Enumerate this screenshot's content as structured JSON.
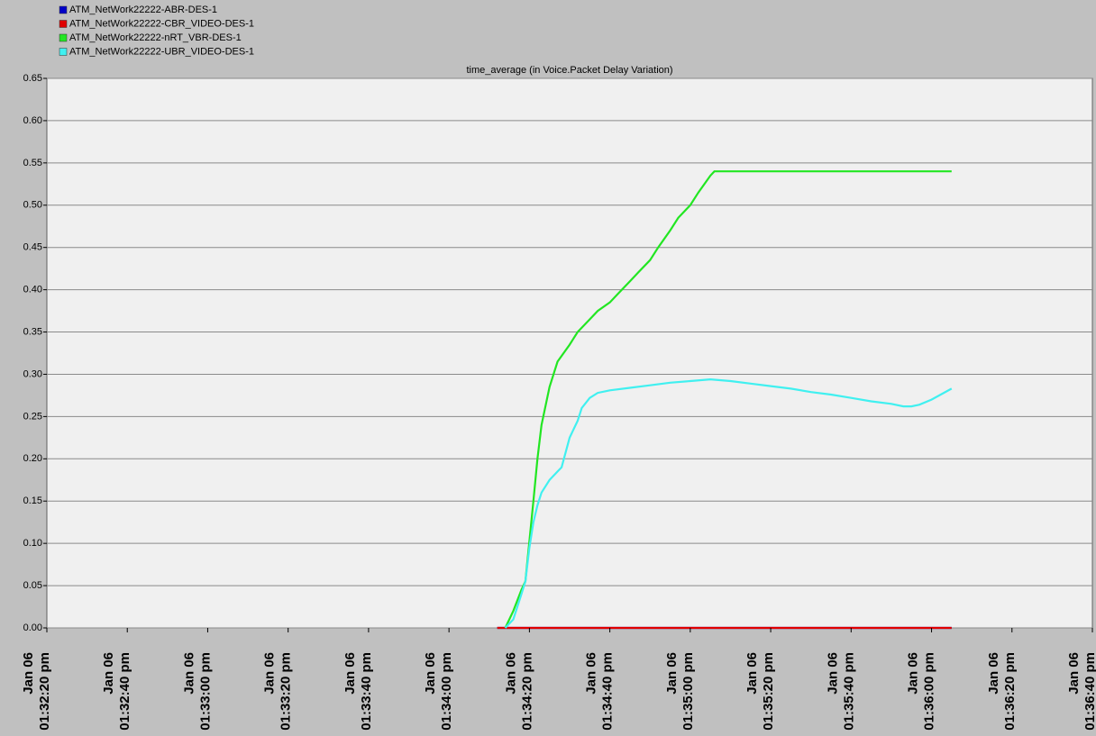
{
  "chart_data": {
    "type": "line",
    "title": "time_average (in Voice.Packet Delay Variation)",
    "xlim": [
      "13:32:20",
      "13:36:40"
    ],
    "xticks": [
      {
        "value": "13:32:20",
        "label": [
          "Jan 06",
          "01:32:20 pm"
        ]
      },
      {
        "value": "13:32:40",
        "label": [
          "Jan 06",
          "01:32:40 pm"
        ]
      },
      {
        "value": "13:33:00",
        "label": [
          "Jan 06",
          "01:33:00 pm"
        ]
      },
      {
        "value": "13:33:20",
        "label": [
          "Jan 06",
          "01:33:20 pm"
        ]
      },
      {
        "value": "13:33:40",
        "label": [
          "Jan 06",
          "01:33:40  pm"
        ]
      },
      {
        "value": "13:34:00",
        "label": [
          "Jan 06",
          "01:34:00 pm"
        ]
      },
      {
        "value": "13:34:20",
        "label": [
          "Jan 06",
          "01:34:20 pm"
        ]
      },
      {
        "value": "13:34:40",
        "label": [
          "Jan 06",
          "01:34:40 pm"
        ]
      },
      {
        "value": "13:35:00",
        "label": [
          "Jan 06",
          "01:35:00 pm"
        ]
      },
      {
        "value": "13:35:20",
        "label": [
          "Jan 06",
          "01:35:20 pm"
        ]
      },
      {
        "value": "13:35:40",
        "label": [
          "Jan 06",
          "01:35:40 pm"
        ]
      },
      {
        "value": "13:36:00",
        "label": [
          "Jan 06",
          "01:36:00 pm"
        ]
      },
      {
        "value": "13:36:20",
        "label": [
          "Jan 06",
          "01:36:20 pm"
        ]
      },
      {
        "value": "13:36:40",
        "label": [
          "Jan 06",
          "01:36:40 pm"
        ]
      }
    ],
    "ylim": [
      0,
      0.65
    ],
    "yticks": [
      {
        "value": 0,
        "label": "0.00"
      },
      {
        "value": 0.05,
        "label": "0.05"
      },
      {
        "value": 0.1,
        "label": "0.10"
      },
      {
        "value": 0.15,
        "label": "0.15"
      },
      {
        "value": 0.2,
        "label": "0.20"
      },
      {
        "value": 0.25,
        "label": "0.25"
      },
      {
        "value": 0.3,
        "label": "0.30"
      },
      {
        "value": 0.35,
        "label": "0.35"
      },
      {
        "value": 0.4,
        "label": "0.40"
      },
      {
        "value": 0.45,
        "label": "0.45"
      },
      {
        "value": 0.5,
        "label": "0.50"
      },
      {
        "value": 0.55,
        "label": "0.55"
      },
      {
        "value": 0.6,
        "label": "0.60"
      },
      {
        "value": 0.65,
        "label": "0.65"
      }
    ],
    "grid": true,
    "legend_position": "top-left",
    "series": [
      {
        "name": "ATM_NetWork22222-ABR-DES-1",
        "color": "#0000c8",
        "x": [
          "13:34:12",
          "13:36:05"
        ],
        "values": [
          0,
          0
        ]
      },
      {
        "name": "ATM_NetWork22222-CBR_VIDEO-DES-1",
        "color": "#e00000",
        "x": [
          "13:34:12",
          "13:36:05"
        ],
        "values": [
          0,
          0
        ]
      },
      {
        "name": "ATM_NetWork22222-nRT_VBR-DES-1",
        "color": "#22e622",
        "x": [
          "13:34:14",
          "13:34:16",
          "13:34:18",
          "13:34:19",
          "13:34:21",
          "13:34:22",
          "13:34:23",
          "13:34:25",
          "13:34:27",
          "13:34:30",
          "13:34:32",
          "13:34:35",
          "13:34:37",
          "13:34:40",
          "13:34:42",
          "13:34:45",
          "13:34:47",
          "13:34:50",
          "13:34:52",
          "13:34:55",
          "13:34:57",
          "13:35:00",
          "13:35:02",
          "13:35:05",
          "13:35:06",
          "13:36:05"
        ],
        "values": [
          0,
          0.02,
          0.045,
          0.055,
          0.15,
          0.2,
          0.24,
          0.285,
          0.315,
          0.335,
          0.35,
          0.365,
          0.375,
          0.385,
          0.395,
          0.41,
          0.42,
          0.435,
          0.45,
          0.47,
          0.485,
          0.5,
          0.515,
          0.535,
          0.54,
          0.54
        ]
      },
      {
        "name": "ATM_NetWork22222-UBR_VIDEO-DES-1",
        "color": "#40f0f0",
        "x": [
          "13:34:14",
          "13:34:16",
          "13:34:18",
          "13:34:19",
          "13:34:20",
          "13:34:21",
          "13:34:22",
          "13:34:23",
          "13:34:25",
          "13:34:27",
          "13:34:28",
          "13:34:30",
          "13:34:32",
          "13:34:33",
          "13:34:35",
          "13:34:37",
          "13:34:40",
          "13:34:45",
          "13:34:50",
          "13:34:55",
          "13:35:00",
          "13:35:05",
          "13:35:10",
          "13:35:15",
          "13:35:20",
          "13:35:25",
          "13:35:30",
          "13:35:35",
          "13:35:40",
          "13:35:45",
          "13:35:50",
          "13:35:53",
          "13:35:55",
          "13:35:57",
          "13:36:00",
          "13:36:05"
        ],
        "values": [
          0,
          0.01,
          0.04,
          0.055,
          0.095,
          0.125,
          0.145,
          0.16,
          0.175,
          0.185,
          0.19,
          0.225,
          0.245,
          0.26,
          0.272,
          0.278,
          0.281,
          0.284,
          0.287,
          0.29,
          0.292,
          0.294,
          0.292,
          0.289,
          0.286,
          0.283,
          0.279,
          0.276,
          0.272,
          0.268,
          0.265,
          0.262,
          0.262,
          0.264,
          0.27,
          0.283
        ]
      }
    ]
  }
}
